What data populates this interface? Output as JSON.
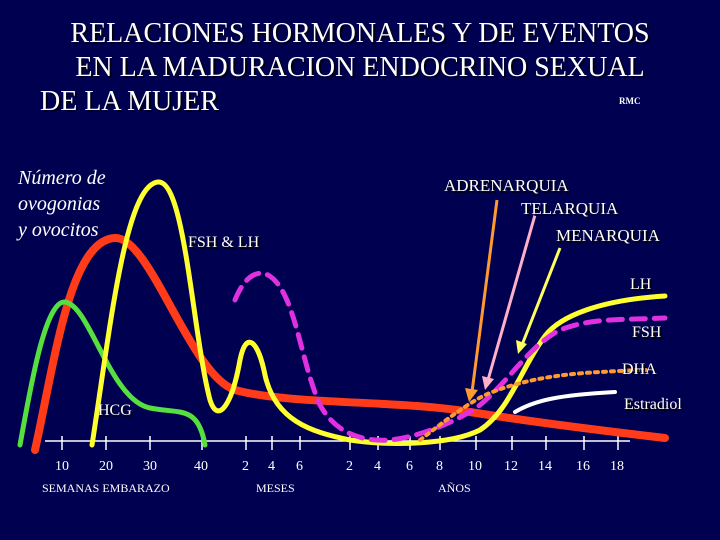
{
  "title": {
    "line1": "RELACIONES HORMONALES Y DE EVENTOS",
    "line2": "EN LA MADURACION ENDOCRINO SEXUAL",
    "line3": "DE LA MUJER",
    "tag": "RMC"
  },
  "left_label": {
    "line1": "Número de",
    "line2": "ovogonias",
    "line3": "y ovocitos"
  },
  "events": {
    "adrenarquia": "ADRENARQUIA",
    "telarquia": "TELARQUIA",
    "menarquia": "MENARQUIA"
  },
  "curve_labels": {
    "fsh_lh": "FSH & LH",
    "lh": "LH",
    "fsh": "FSH",
    "dha": "DHA",
    "hcg": "HCG",
    "estradiol": "Estradiol"
  },
  "axis": {
    "weeks_ticks": [
      "10",
      "20",
      "30",
      "40"
    ],
    "weeks_label": "SEMANAS EMBARAZO",
    "months_ticks": [
      "2",
      "4",
      "6"
    ],
    "months_label": "MESES",
    "years_ticks": [
      "2",
      "4",
      "6",
      "8",
      "10",
      "12",
      "14",
      "16",
      "18"
    ],
    "years_label": "AÑOS"
  },
  "colors": {
    "background": "#000050",
    "oocytes": "#ff3b1a",
    "hcg": "#55e040",
    "fsh_lh": "#ffff30",
    "fsh": "#e030e0",
    "dha": "#ff9a30",
    "estradiol": "#ffffff",
    "adrenarquia_arrow": "#ff9a30",
    "telarquia_arrow": "#ffb0c8",
    "menarquia_arrow": "#ffff60"
  }
}
